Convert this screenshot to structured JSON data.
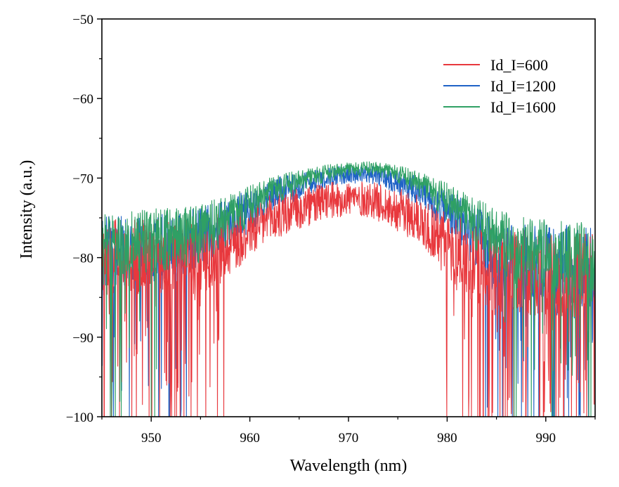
{
  "chart_data": {
    "type": "line",
    "title": "",
    "xlabel": "Wavelength (nm)",
    "ylabel": "Intensity (a.u.)",
    "xlim": [
      945,
      995
    ],
    "ylim": [
      -100,
      -50
    ],
    "x_ticks": [
      950,
      960,
      970,
      980,
      990
    ],
    "y_ticks": [
      -100,
      -90,
      -80,
      -70,
      -60,
      -50
    ],
    "x_tick_labels": [
      "950",
      "960",
      "970",
      "980",
      "990"
    ],
    "y_tick_labels": [
      "−100",
      "−90",
      "−80",
      "−70",
      "−60",
      "−50"
    ],
    "grid": false,
    "legend_position": "top-right",
    "series": [
      {
        "name": "Id_I=600",
        "color": "#e8383d",
        "x": [
          945,
          947.5,
          950,
          952.5,
          955,
          957.5,
          960,
          962.5,
          965,
          967.5,
          970,
          972.5,
          975,
          977.5,
          980,
          982.5,
          985,
          987.5,
          990,
          992.5,
          995
        ],
        "y": [
          -80,
          -80,
          -80,
          -80,
          -80,
          -78.5,
          -76.5,
          -75,
          -74,
          -73,
          -72.5,
          -72.8,
          -74,
          -75.5,
          -78.5,
          -80.5,
          -82,
          -82,
          -82,
          -82,
          -82
        ]
      },
      {
        "name": "Id_I=1200",
        "color": "#1f63c6",
        "x": [
          945,
          947.5,
          950,
          952.5,
          955,
          957.5,
          960,
          962.5,
          965,
          967.5,
          970,
          972.5,
          975,
          977.5,
          980,
          982.5,
          985,
          987.5,
          990,
          992.5,
          995
        ],
        "y": [
          -79.5,
          -79,
          -79,
          -78.5,
          -77.5,
          -76,
          -74,
          -72,
          -71,
          -70,
          -69.5,
          -69.6,
          -70.5,
          -72,
          -74,
          -77,
          -80,
          -81,
          -81,
          -81,
          -81
        ]
      },
      {
        "name": "Id_I=1600",
        "color": "#2fa064",
        "x": [
          945,
          947.5,
          950,
          952.5,
          955,
          957.5,
          960,
          962.5,
          965,
          967.5,
          970,
          972.5,
          975,
          977.5,
          980,
          982.5,
          985,
          987.5,
          990,
          992.5,
          995
        ],
        "y": [
          -79,
          -78.5,
          -78,
          -77.5,
          -77,
          -75.5,
          -73.5,
          -71.5,
          -70.5,
          -69.5,
          -69,
          -68.8,
          -69.5,
          -71,
          -73,
          -75.5,
          -78,
          -79.5,
          -80,
          -80.5,
          -80.5
        ]
      }
    ]
  }
}
